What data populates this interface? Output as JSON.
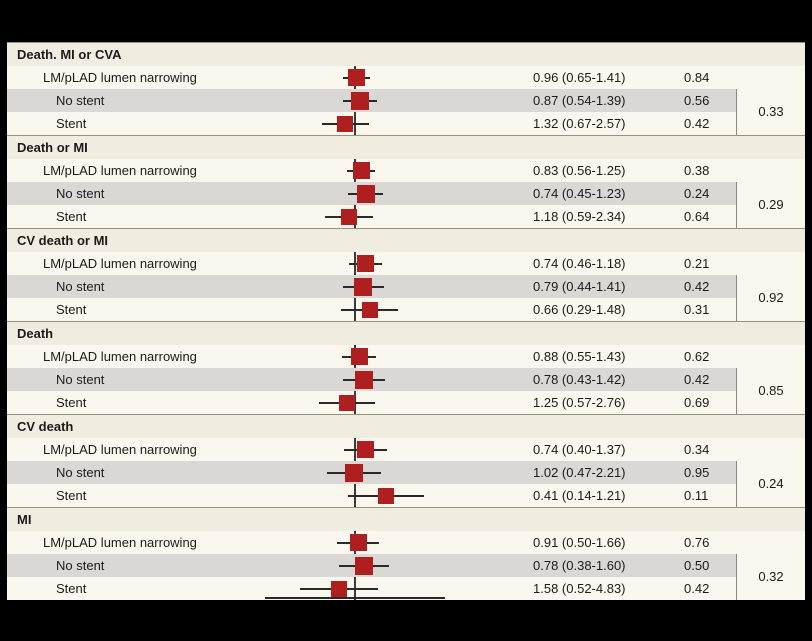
{
  "figure": {
    "description": "Forest plot of hazard ratios by endpoint and subgroup",
    "colors": {
      "canvas_bg": "#000000",
      "panel_bg": "#f9f7ee",
      "header_band_bg": "#f0ede0",
      "alt_row_bg": "#d9d8d4",
      "marker": "#b01f1f",
      "line": "#2a2a28",
      "section_border": "#96927f"
    }
  },
  "chart_data": {
    "type": "forest",
    "x_axis": {
      "scale": "log",
      "reversed": true,
      "reference_value": 1,
      "tick_labels_visible": false,
      "note": "axis labels cropped out of frame at bottom"
    },
    "legend": "none",
    "sections": [
      {
        "title": "Death. MI or CVA",
        "p_interaction": "0.33",
        "rows": [
          {
            "label": "LM/pLAD lumen narrowing",
            "level": 1,
            "hr": 0.96,
            "ci_low": 0.65,
            "ci_high": 1.41,
            "hr_ci": "0.96 (0.65-1.41)",
            "p": "0.84"
          },
          {
            "label": "No stent",
            "level": 2,
            "hr": 0.87,
            "ci_low": 0.54,
            "ci_high": 1.39,
            "hr_ci": "0.87 (0.54-1.39)",
            "p": "0.56"
          },
          {
            "label": "Stent",
            "level": 2,
            "hr": 1.32,
            "ci_low": 0.67,
            "ci_high": 2.57,
            "hr_ci": "1.32 (0.67-2.57)",
            "p": "0.42"
          }
        ]
      },
      {
        "title": "Death or MI",
        "p_interaction": "0.29",
        "rows": [
          {
            "label": "LM/pLAD lumen narrowing",
            "level": 1,
            "hr": 0.83,
            "ci_low": 0.56,
            "ci_high": 1.25,
            "hr_ci": "0.83 (0.56-1.25)",
            "p": "0.38"
          },
          {
            "label": "No stent",
            "level": 2,
            "hr": 0.74,
            "ci_low": 0.45,
            "ci_high": 1.23,
            "hr_ci": "0.74 (0.45-1.23)",
            "p": "0.24"
          },
          {
            "label": "Stent",
            "level": 2,
            "hr": 1.18,
            "ci_low": 0.59,
            "ci_high": 2.34,
            "hr_ci": "1.18 (0.59-2.34)",
            "p": "0.64"
          }
        ]
      },
      {
        "title": "CV death or MI",
        "p_interaction": "0.92",
        "rows": [
          {
            "label": "LM/pLAD lumen narrowing",
            "level": 1,
            "hr": 0.74,
            "ci_low": 0.46,
            "ci_high": 1.18,
            "hr_ci": "0.74 (0.46-1.18)",
            "p": "0.21"
          },
          {
            "label": "No stent",
            "level": 2,
            "hr": 0.79,
            "ci_low": 0.44,
            "ci_high": 1.41,
            "hr_ci": "0.79 (0.44-1.41)",
            "p": "0.42"
          },
          {
            "label": "Stent",
            "level": 2,
            "hr": 0.66,
            "ci_low": 0.29,
            "ci_high": 1.48,
            "hr_ci": "0.66 (0.29-1.48)",
            "p": "0.31"
          }
        ]
      },
      {
        "title": "Death",
        "p_interaction": "0.85",
        "rows": [
          {
            "label": "LM/pLAD lumen narrowing",
            "level": 1,
            "hr": 0.88,
            "ci_low": 0.55,
            "ci_high": 1.43,
            "hr_ci": "0.88 (0.55-1.43)",
            "p": "0.62"
          },
          {
            "label": "No stent",
            "level": 2,
            "hr": 0.78,
            "ci_low": 0.43,
            "ci_high": 1.42,
            "hr_ci": "0.78 (0.43-1.42)",
            "p": "0.42"
          },
          {
            "label": "Stent",
            "level": 2,
            "hr": 1.25,
            "ci_low": 0.57,
            "ci_high": 2.76,
            "hr_ci": "1.25 (0.57-2.76)",
            "p": "0.69"
          }
        ]
      },
      {
        "title": "CV death",
        "p_interaction": "0.24",
        "rows": [
          {
            "label": "LM/pLAD lumen narrowing",
            "level": 1,
            "hr": 0.74,
            "ci_low": 0.4,
            "ci_high": 1.37,
            "hr_ci": "0.74 (0.40-1.37)",
            "p": "0.34"
          },
          {
            "label": "No stent",
            "level": 2,
            "hr": 1.02,
            "ci_low": 0.47,
            "ci_high": 2.21,
            "hr_ci": "1.02 (0.47-2.21)",
            "p": "0.95"
          },
          {
            "label": "Stent",
            "level": 2,
            "hr": 0.41,
            "ci_low": 0.14,
            "ci_high": 1.21,
            "hr_ci": "0.41 (0.14-1.21)",
            "p": "0.11"
          }
        ]
      },
      {
        "title": "MI",
        "p_interaction": "0.32",
        "rows": [
          {
            "label": "LM/pLAD lumen narrowing",
            "level": 1,
            "hr": 0.91,
            "ci_low": 0.5,
            "ci_high": 1.66,
            "hr_ci": "0.91 (0.50-1.66)",
            "p": "0.76"
          },
          {
            "label": "No stent",
            "level": 2,
            "hr": 0.78,
            "ci_low": 0.38,
            "ci_high": 1.6,
            "hr_ci": "0.78 (0.38-1.60)",
            "p": "0.50"
          },
          {
            "label": "Stent",
            "level": 2,
            "hr": 1.58,
            "ci_low": 0.52,
            "ci_high": 4.83,
            "hr_ci": "1.58 (0.52-4.83)",
            "p": "0.42"
          }
        ]
      }
    ]
  }
}
